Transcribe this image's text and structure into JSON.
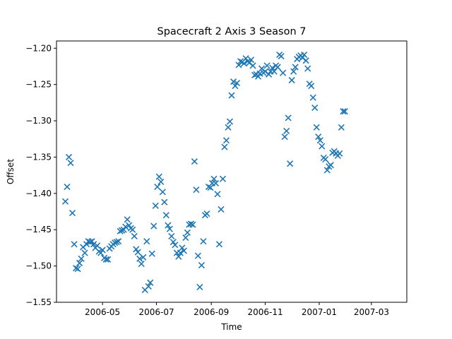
{
  "chart_data": {
    "type": "scatter",
    "title": "Spacecraft 2 Axis 3 Season 7",
    "xlabel": "Time",
    "ylabel": "Offset",
    "x_axis_type": "date",
    "xlim": [
      "2006-03-10",
      "2007-04-10"
    ],
    "ylim": [
      -1.55,
      -1.19
    ],
    "x_ticks": [
      "2006-05",
      "2006-07",
      "2006-09",
      "2006-11",
      "2007-01",
      "2007-03"
    ],
    "y_ticks": [
      -1.2,
      -1.25,
      -1.3,
      -1.35,
      -1.4,
      -1.45,
      -1.5,
      -1.55
    ],
    "grid": false,
    "marker": "x",
    "marker_color": "#1f77b4",
    "series": [
      {
        "points": [
          [
            "2006-03-20",
            -1.411
          ],
          [
            "2006-03-22",
            -1.391
          ],
          [
            "2006-03-24",
            -1.35
          ],
          [
            "2006-03-26",
            -1.358
          ],
          [
            "2006-03-28",
            -1.427
          ],
          [
            "2006-03-30",
            -1.47
          ],
          [
            "2006-04-01",
            -1.503
          ],
          [
            "2006-04-03",
            -1.504
          ],
          [
            "2006-04-05",
            -1.496
          ],
          [
            "2006-04-07",
            -1.49
          ],
          [
            "2006-04-09",
            -1.474
          ],
          [
            "2006-04-11",
            -1.482
          ],
          [
            "2006-04-13",
            -1.47
          ],
          [
            "2006-04-15",
            -1.466
          ],
          [
            "2006-04-17",
            -1.467
          ],
          [
            "2006-04-19",
            -1.466
          ],
          [
            "2006-04-21",
            -1.47
          ],
          [
            "2006-04-23",
            -1.475
          ],
          [
            "2006-04-25",
            -1.472
          ],
          [
            "2006-04-27",
            -1.48
          ],
          [
            "2006-04-29",
            -1.482
          ],
          [
            "2006-05-01",
            -1.478
          ],
          [
            "2006-05-03",
            -1.489
          ],
          [
            "2006-05-05",
            -1.491
          ],
          [
            "2006-05-07",
            -1.491
          ],
          [
            "2006-05-09",
            -1.476
          ],
          [
            "2006-05-11",
            -1.473
          ],
          [
            "2006-05-13",
            -1.47
          ],
          [
            "2006-05-15",
            -1.468
          ],
          [
            "2006-05-17",
            -1.467
          ],
          [
            "2006-05-19",
            -1.466
          ],
          [
            "2006-05-21",
            -1.452
          ],
          [
            "2006-05-23",
            -1.451
          ],
          [
            "2006-05-25",
            -1.45
          ],
          [
            "2006-05-27",
            -1.446
          ],
          [
            "2006-05-29",
            -1.436
          ],
          [
            "2006-05-31",
            -1.444
          ],
          [
            "2006-06-02",
            -1.448
          ],
          [
            "2006-06-04",
            -1.45
          ],
          [
            "2006-06-06",
            -1.459
          ],
          [
            "2006-06-08",
            -1.477
          ],
          [
            "2006-06-10",
            -1.481
          ],
          [
            "2006-06-12",
            -1.49
          ],
          [
            "2006-06-14",
            -1.497
          ],
          [
            "2006-06-16",
            -1.488
          ],
          [
            "2006-06-18",
            -1.533
          ],
          [
            "2006-06-20",
            -1.466
          ],
          [
            "2006-06-22",
            -1.528
          ],
          [
            "2006-06-24",
            -1.523
          ],
          [
            "2006-06-26",
            -1.483
          ],
          [
            "2006-06-28",
            -1.445
          ],
          [
            "2006-06-30",
            -1.417
          ],
          [
            "2006-07-02",
            -1.391
          ],
          [
            "2006-07-04",
            -1.377
          ],
          [
            "2006-07-06",
            -1.384
          ],
          [
            "2006-07-08",
            -1.398
          ],
          [
            "2006-07-10",
            -1.412
          ],
          [
            "2006-07-12",
            -1.43
          ],
          [
            "2006-07-14",
            -1.444
          ],
          [
            "2006-07-16",
            -1.449
          ],
          [
            "2006-07-18",
            -1.459
          ],
          [
            "2006-07-20",
            -1.467
          ],
          [
            "2006-07-22",
            -1.471
          ],
          [
            "2006-07-24",
            -1.482
          ],
          [
            "2006-07-26",
            -1.487
          ],
          [
            "2006-07-28",
            -1.482
          ],
          [
            "2006-07-30",
            -1.475
          ],
          [
            "2006-08-01",
            -1.479
          ],
          [
            "2006-08-03",
            -1.461
          ],
          [
            "2006-08-05",
            -1.454
          ],
          [
            "2006-08-07",
            -1.443
          ],
          [
            "2006-08-09",
            -1.442
          ],
          [
            "2006-08-11",
            -1.443
          ],
          [
            "2006-08-13",
            -1.356
          ],
          [
            "2006-08-15",
            -1.395
          ],
          [
            "2006-08-17",
            -1.486
          ],
          [
            "2006-08-19",
            -1.529
          ],
          [
            "2006-08-21",
            -1.499
          ],
          [
            "2006-08-23",
            -1.466
          ],
          [
            "2006-08-25",
            -1.43
          ],
          [
            "2006-08-27",
            -1.428
          ],
          [
            "2006-08-29",
            -1.391
          ],
          [
            "2006-08-31",
            -1.392
          ],
          [
            "2006-09-02",
            -1.386
          ],
          [
            "2006-09-04",
            -1.38
          ],
          [
            "2006-09-06",
            -1.386
          ],
          [
            "2006-09-08",
            -1.401
          ],
          [
            "2006-09-10",
            -1.47
          ],
          [
            "2006-09-12",
            -1.422
          ],
          [
            "2006-09-14",
            -1.38
          ],
          [
            "2006-09-16",
            -1.336
          ],
          [
            "2006-09-18",
            -1.327
          ],
          [
            "2006-09-20",
            -1.309
          ],
          [
            "2006-09-22",
            -1.301
          ],
          [
            "2006-09-24",
            -1.265
          ],
          [
            "2006-09-26",
            -1.246
          ],
          [
            "2006-09-28",
            -1.252
          ],
          [
            "2006-09-30",
            -1.248
          ],
          [
            "2006-10-02",
            -1.223
          ],
          [
            "2006-10-04",
            -1.218
          ],
          [
            "2006-10-06",
            -1.219
          ],
          [
            "2006-10-08",
            -1.221
          ],
          [
            "2006-10-10",
            -1.214
          ],
          [
            "2006-10-12",
            -1.218
          ],
          [
            "2006-10-14",
            -1.22
          ],
          [
            "2006-10-16",
            -1.216
          ],
          [
            "2006-10-18",
            -1.224
          ],
          [
            "2006-10-20",
            -1.237
          ],
          [
            "2006-10-22",
            -1.236
          ],
          [
            "2006-10-24",
            -1.239
          ],
          [
            "2006-10-26",
            -1.235
          ],
          [
            "2006-10-28",
            -1.228
          ],
          [
            "2006-10-30",
            -1.234
          ],
          [
            "2006-11-01",
            -1.232
          ],
          [
            "2006-11-03",
            -1.224
          ],
          [
            "2006-11-05",
            -1.236
          ],
          [
            "2006-11-07",
            -1.232
          ],
          [
            "2006-11-09",
            -1.227
          ],
          [
            "2006-11-11",
            -1.232
          ],
          [
            "2006-11-13",
            -1.224
          ],
          [
            "2006-11-15",
            -1.226
          ],
          [
            "2006-11-17",
            -1.209
          ],
          [
            "2006-11-19",
            -1.211
          ],
          [
            "2006-11-21",
            -1.234
          ],
          [
            "2006-11-23",
            -1.322
          ],
          [
            "2006-11-25",
            -1.314
          ],
          [
            "2006-11-27",
            -1.296
          ],
          [
            "2006-11-29",
            -1.359
          ],
          [
            "2006-12-01",
            -1.244
          ],
          [
            "2006-12-03",
            -1.232
          ],
          [
            "2006-12-05",
            -1.226
          ],
          [
            "2006-12-07",
            -1.215
          ],
          [
            "2006-12-09",
            -1.212
          ],
          [
            "2006-12-11",
            -1.21
          ],
          [
            "2006-12-13",
            -1.213
          ],
          [
            "2006-12-15",
            -1.209
          ],
          [
            "2006-12-17",
            -1.217
          ],
          [
            "2006-12-19",
            -1.228
          ],
          [
            "2006-12-21",
            -1.249
          ],
          [
            "2006-12-23",
            -1.252
          ],
          [
            "2006-12-25",
            -1.268
          ],
          [
            "2006-12-27",
            -1.282
          ],
          [
            "2006-12-29",
            -1.309
          ],
          [
            "2006-12-31",
            -1.322
          ],
          [
            "2007-01-02",
            -1.327
          ],
          [
            "2007-01-04",
            -1.335
          ],
          [
            "2007-01-06",
            -1.351
          ],
          [
            "2007-01-08",
            -1.353
          ],
          [
            "2007-01-10",
            -1.368
          ],
          [
            "2007-01-12",
            -1.363
          ],
          [
            "2007-01-14",
            -1.361
          ],
          [
            "2007-01-16",
            -1.344
          ],
          [
            "2007-01-18",
            -1.342
          ],
          [
            "2007-01-20",
            -1.345
          ],
          [
            "2007-01-22",
            -1.348
          ],
          [
            "2007-01-24",
            -1.345
          ],
          [
            "2007-01-26",
            -1.309
          ],
          [
            "2007-01-28",
            -1.287
          ],
          [
            "2007-01-30",
            -1.287
          ]
        ]
      }
    ]
  }
}
